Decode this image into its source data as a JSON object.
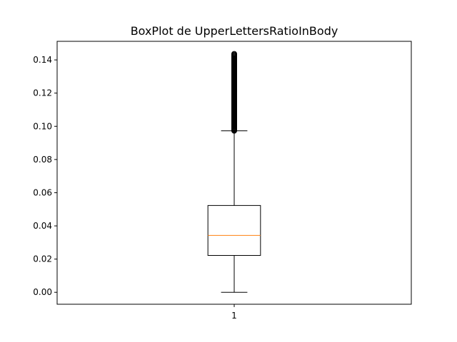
{
  "chart_data": {
    "type": "boxplot",
    "title": "BoxPlot de UpperLettersRatioInBody",
    "xlabel": "",
    "ylabel": "",
    "ylim": [
      -0.0072,
      0.1512
    ],
    "yticks": [
      0.0,
      0.02,
      0.04,
      0.06,
      0.08,
      0.1,
      0.12,
      0.14
    ],
    "ytick_labels": [
      "0.00",
      "0.02",
      "0.04",
      "0.06",
      "0.08",
      "0.10",
      "0.12",
      "0.14"
    ],
    "xlim": [
      0.5,
      1.5
    ],
    "xticks": [
      1
    ],
    "xtick_labels": [
      "1"
    ],
    "grid": false,
    "boxes": [
      {
        "position": 1,
        "whisker_low": 0.0,
        "q1": 0.0222,
        "median": 0.0343,
        "q3": 0.0523,
        "whisker_high": 0.0973,
        "outliers_range": [
          0.0973,
          0.144
        ],
        "median_color": "#ff7f0e",
        "box_color": "#000000"
      }
    ]
  }
}
